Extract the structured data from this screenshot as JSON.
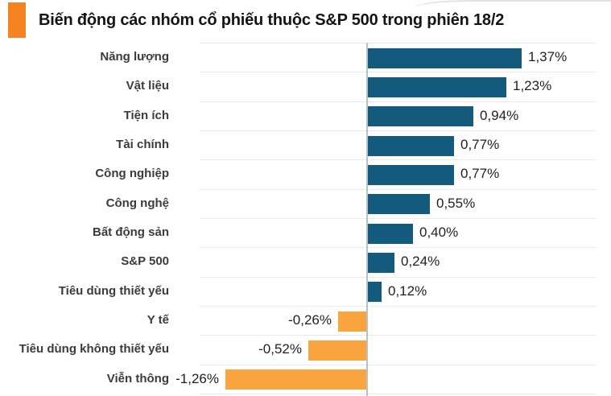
{
  "title": {
    "text": "Biến động các nhóm cổ phiếu thuộc S&P 500 trong phiên 18/2",
    "accent_color": "#f5831f"
  },
  "chart_data": {
    "type": "bar",
    "orientation": "horizontal",
    "title": "Biến động các nhóm cổ phiếu thuộc S&P 500 trong phiên 18/2",
    "categories": [
      "Năng lượng",
      "Vật liệu",
      "Tiện ích",
      "Tài chính",
      "Công nghiệp",
      "Công nghệ",
      "Bất động sản",
      "S&P 500",
      "Tiêu dùng thiết yếu",
      "Y tế",
      "Tiêu dùng không thiết yếu",
      "Viễn thông"
    ],
    "values": [
      1.37,
      1.23,
      0.94,
      0.77,
      0.77,
      0.55,
      0.4,
      0.24,
      0.12,
      -0.26,
      -0.52,
      -1.26
    ],
    "value_labels": [
      "1,37%",
      "1,23%",
      "0,94%",
      "0,77%",
      "0,77%",
      "0,55%",
      "0,40%",
      "0,24%",
      "0,12%",
      "-0,26%",
      "-0,52%",
      "-1,26%"
    ],
    "unit": "%",
    "xlim": [
      -1.26,
      1.37
    ],
    "positive_color": "#135a7c",
    "negative_color": "#f9a43e",
    "axis_color": "#b5c0c7",
    "gridline_color": "#e9e9e9",
    "grid": "horizontal row separators",
    "legend": "none",
    "value_label_position": "outside bar end",
    "decimal_separator": ","
  }
}
